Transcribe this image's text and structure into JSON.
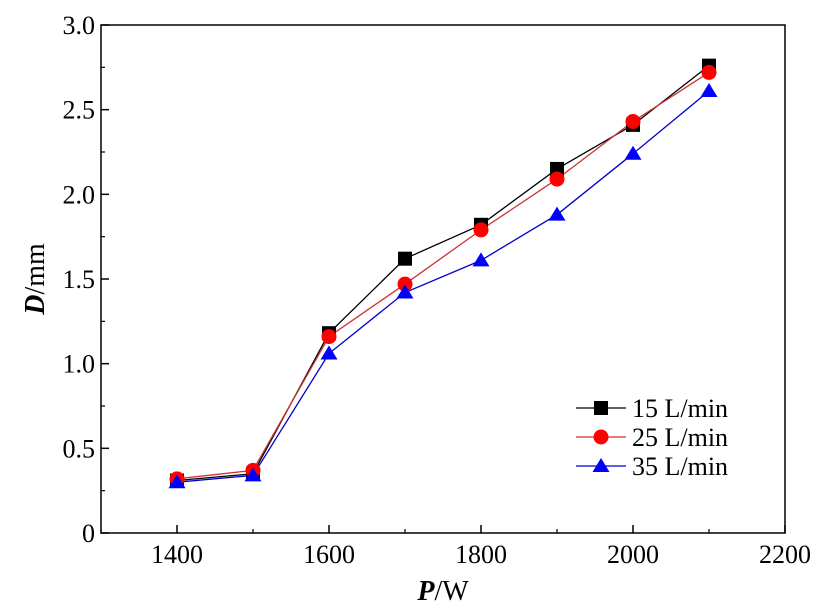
{
  "chart_data": {
    "type": "line",
    "xlabel_var": "P",
    "xlabel_unit": "/W",
    "ylabel_var": "D",
    "ylabel_unit": "/mm",
    "xlim": [
      1300,
      2200
    ],
    "ylim": [
      0,
      3.0
    ],
    "xticks": [
      1400,
      1600,
      1800,
      2000,
      2200
    ],
    "xtick_labels": [
      "1400",
      "1600",
      "1800",
      "2000",
      "2200"
    ],
    "yticks": [
      0,
      0.5,
      1.0,
      1.5,
      2.0,
      2.5,
      3.0
    ],
    "ytick_labels": [
      "0",
      "0.5",
      "1.0",
      "1.5",
      "2.0",
      "2.5",
      "3.0"
    ],
    "x": [
      1400,
      1500,
      1600,
      1700,
      1800,
      1900,
      2000,
      2100
    ],
    "legend_position": "lower-right",
    "grid": false,
    "series": [
      {
        "name": "15 L/min",
        "marker": "square",
        "color": "#000000",
        "values": [
          0.31,
          0.35,
          1.18,
          1.62,
          1.82,
          2.15,
          2.41,
          2.76
        ]
      },
      {
        "name": "25 L/min",
        "marker": "circle",
        "color": "#ff0000",
        "line_color": "#cc3333",
        "values": [
          0.32,
          0.37,
          1.16,
          1.47,
          1.79,
          2.09,
          2.43,
          2.72
        ]
      },
      {
        "name": "35 L/min",
        "marker": "triangle",
        "color": "#0000ff",
        "line_color": "#0000cc",
        "values": [
          0.3,
          0.34,
          1.06,
          1.42,
          1.61,
          1.88,
          2.24,
          2.61
        ]
      }
    ]
  }
}
